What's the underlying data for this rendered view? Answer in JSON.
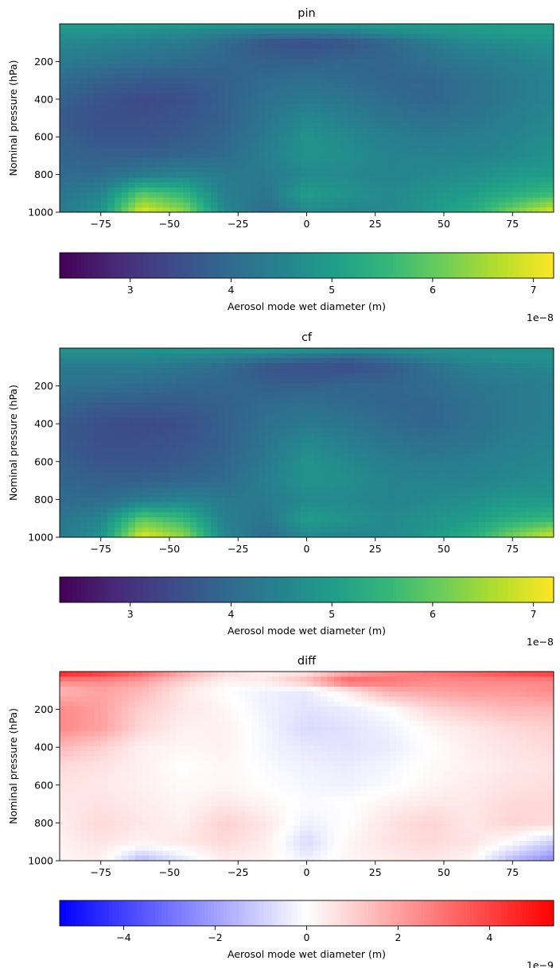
{
  "chart_data": [
    {
      "type": "heatmap",
      "title": "pin",
      "xlabel": "",
      "ylabel": "Nominal pressure (hPa)",
      "xlim": [
        -90,
        90
      ],
      "ylim": [
        1000,
        0
      ],
      "xticks": [
        -75,
        -50,
        -25,
        0,
        25,
        50,
        75
      ],
      "yticks": [
        200,
        400,
        600,
        800,
        1000
      ],
      "colormap": "viridis",
      "colorbar": {
        "label": "Aerosol mode wet diameter (m)",
        "range": [
          2.3e-08,
          7.2e-08
        ],
        "ticks": [
          3,
          4,
          5,
          6,
          7
        ],
        "offset_text": "1e−8",
        "orientation": "horizontal"
      },
      "field": {
        "lat": [
          -90,
          -75,
          -60,
          -45,
          -30,
          -15,
          0,
          15,
          30,
          45,
          60,
          75,
          90
        ],
        "pressure": [
          0,
          50,
          100,
          200,
          300,
          400,
          500,
          600,
          700,
          800,
          900,
          1000
        ],
        "values_1e-8": [
          [
            5.0,
            5.0,
            5.0,
            5.0,
            5.0,
            5.0,
            5.0,
            5.0,
            5.0,
            5.0,
            5.0,
            5.0,
            5.0
          ],
          [
            4.8,
            4.8,
            4.7,
            4.6,
            4.4,
            4.2,
            4.2,
            4.3,
            4.6,
            4.8,
            4.9,
            5.0,
            5.0
          ],
          [
            4.6,
            4.5,
            4.4,
            4.3,
            4.0,
            3.6,
            3.5,
            3.6,
            3.9,
            4.3,
            4.6,
            4.7,
            4.8
          ],
          [
            4.3,
            4.2,
            4.1,
            4.0,
            3.9,
            3.8,
            3.8,
            3.9,
            3.9,
            4.1,
            4.3,
            4.4,
            4.6
          ],
          [
            4.0,
            3.8,
            3.7,
            3.7,
            3.8,
            4.0,
            4.1,
            4.0,
            3.9,
            3.9,
            4.1,
            4.3,
            4.5
          ],
          [
            3.8,
            3.6,
            3.4,
            3.5,
            3.8,
            4.1,
            4.3,
            4.2,
            4.0,
            3.9,
            4.1,
            4.3,
            4.5
          ],
          [
            3.7,
            3.5,
            3.5,
            3.6,
            3.8,
            4.2,
            4.6,
            4.4,
            4.2,
            4.1,
            4.2,
            4.4,
            4.6
          ],
          [
            3.8,
            3.6,
            3.6,
            3.7,
            3.9,
            4.3,
            4.8,
            4.6,
            4.4,
            4.3,
            4.4,
            4.5,
            4.7
          ],
          [
            3.9,
            3.8,
            3.8,
            3.9,
            4.0,
            4.4,
            4.8,
            4.7,
            4.5,
            4.5,
            4.5,
            4.6,
            4.8
          ],
          [
            4.0,
            4.0,
            4.3,
            4.5,
            4.3,
            4.3,
            4.6,
            4.6,
            4.5,
            4.6,
            4.7,
            4.9,
            5.0
          ],
          [
            4.2,
            4.5,
            5.9,
            5.5,
            4.4,
            4.2,
            5.0,
            4.8,
            4.6,
            4.8,
            5.0,
            5.3,
            5.6
          ],
          [
            4.3,
            4.8,
            7.0,
            6.4,
            4.6,
            4.0,
            4.6,
            4.5,
            4.6,
            4.9,
            5.3,
            6.2,
            7.0
          ]
        ]
      }
    },
    {
      "type": "heatmap",
      "title": "cf",
      "xlabel": "",
      "ylabel": "Nominal pressure (hPa)",
      "xlim": [
        -90,
        90
      ],
      "ylim": [
        1000,
        0
      ],
      "xticks": [
        -75,
        -50,
        -25,
        0,
        25,
        50,
        75
      ],
      "yticks": [
        200,
        400,
        600,
        800,
        1000
      ],
      "colormap": "viridis",
      "colorbar": {
        "label": "Aerosol mode wet diameter (m)",
        "range": [
          2.3e-08,
          7.2e-08
        ],
        "ticks": [
          3,
          4,
          5,
          6,
          7
        ],
        "offset_text": "1e−8",
        "orientation": "horizontal"
      },
      "field": {
        "lat": [
          -90,
          -75,
          -60,
          -45,
          -30,
          -15,
          0,
          15,
          30,
          45,
          60,
          75,
          90
        ],
        "pressure": [
          0,
          50,
          100,
          200,
          300,
          400,
          500,
          600,
          700,
          800,
          900,
          1000
        ],
        "values_1e-8": [
          [
            4.8,
            4.8,
            4.8,
            4.9,
            4.9,
            5.0,
            5.0,
            4.9,
            4.8,
            4.8,
            4.7,
            4.7,
            4.7
          ],
          [
            4.6,
            4.6,
            4.6,
            4.5,
            4.4,
            4.2,
            4.0,
            3.8,
            4.1,
            4.5,
            4.7,
            4.8,
            4.8
          ],
          [
            4.3,
            4.3,
            4.3,
            4.2,
            4.0,
            3.6,
            3.5,
            3.5,
            3.7,
            4.1,
            4.4,
            4.5,
            4.6
          ],
          [
            4.1,
            4.1,
            4.0,
            3.9,
            3.9,
            3.8,
            3.8,
            3.9,
            3.9,
            4.0,
            4.2,
            4.3,
            4.4
          ],
          [
            3.9,
            3.7,
            3.7,
            3.7,
            3.8,
            4.0,
            4.1,
            4.0,
            3.9,
            3.9,
            4.1,
            4.3,
            4.4
          ],
          [
            3.7,
            3.5,
            3.4,
            3.5,
            3.8,
            4.1,
            4.3,
            4.2,
            4.0,
            3.9,
            4.1,
            4.3,
            4.4
          ],
          [
            3.7,
            3.5,
            3.5,
            3.6,
            3.8,
            4.2,
            4.6,
            4.4,
            4.2,
            4.1,
            4.2,
            4.4,
            4.5
          ],
          [
            3.8,
            3.6,
            3.6,
            3.7,
            3.9,
            4.3,
            4.8,
            4.6,
            4.4,
            4.3,
            4.4,
            4.5,
            4.6
          ],
          [
            3.9,
            3.8,
            3.8,
            3.9,
            4.0,
            4.4,
            4.8,
            4.7,
            4.5,
            4.5,
            4.5,
            4.6,
            4.7
          ],
          [
            4.0,
            4.0,
            4.3,
            4.5,
            4.3,
            4.3,
            4.6,
            4.6,
            4.5,
            4.6,
            4.7,
            4.9,
            4.9
          ],
          [
            4.2,
            4.5,
            5.9,
            5.5,
            4.4,
            4.2,
            5.0,
            4.8,
            4.6,
            4.8,
            5.0,
            5.3,
            5.5
          ],
          [
            4.3,
            4.8,
            7.0,
            6.4,
            4.6,
            4.0,
            4.6,
            4.5,
            4.6,
            4.9,
            5.3,
            6.2,
            6.9
          ]
        ]
      }
    },
    {
      "type": "heatmap",
      "title": "diff",
      "xlabel": "",
      "ylabel": "Nominal pressure (hPa)",
      "xlim": [
        -90,
        90
      ],
      "ylim": [
        1000,
        0
      ],
      "xticks": [
        -75,
        -50,
        -25,
        0,
        25,
        50,
        75
      ],
      "yticks": [
        200,
        400,
        600,
        800,
        1000
      ],
      "colormap": "bwr",
      "colorbar": {
        "label": "Aerosol mode wet diameter (m)",
        "range": [
          -5.4e-09,
          5.4e-09
        ],
        "ticks": [
          -4,
          -2,
          0,
          2,
          4
        ],
        "offset_text": "1e−9",
        "orientation": "horizontal"
      },
      "field": {
        "lat": [
          -90,
          -75,
          -60,
          -45,
          -30,
          -15,
          0,
          15,
          30,
          45,
          60,
          75,
          90
        ],
        "pressure": [
          0,
          50,
          100,
          200,
          300,
          400,
          500,
          600,
          700,
          800,
          900,
          1000
        ],
        "values_1e-9": [
          [
            5.0,
            4.5,
            3.5,
            2.0,
            0.8,
            0.3,
            0.5,
            1.5,
            2.5,
            3.0,
            3.5,
            4.0,
            4.5
          ],
          [
            2.5,
            2.5,
            2.0,
            1.0,
            0.3,
            0.5,
            1.5,
            3.5,
            3.0,
            2.5,
            2.5,
            2.5,
            2.5
          ],
          [
            1.5,
            2.0,
            1.5,
            0.5,
            0.0,
            -0.3,
            -0.5,
            0.5,
            1.8,
            2.0,
            2.2,
            2.2,
            2.5
          ],
          [
            2.5,
            2.0,
            1.0,
            0.5,
            0.2,
            -0.3,
            -0.6,
            -0.4,
            0.0,
            0.8,
            1.2,
            1.5,
            1.5
          ],
          [
            2.5,
            2.0,
            0.8,
            0.3,
            0.3,
            -0.2,
            -0.8,
            -0.6,
            -0.3,
            0.2,
            0.5,
            0.8,
            1.0
          ],
          [
            1.5,
            1.0,
            0.3,
            0.2,
            0.3,
            -0.2,
            -0.5,
            -0.6,
            -0.4,
            0.0,
            0.4,
            0.6,
            0.8
          ],
          [
            0.8,
            0.6,
            0.3,
            0.0,
            0.2,
            -0.1,
            -0.3,
            -0.4,
            -0.2,
            0.1,
            0.3,
            0.5,
            0.6
          ],
          [
            0.6,
            0.5,
            0.3,
            0.1,
            0.2,
            0.0,
            -0.2,
            -0.3,
            -0.1,
            0.2,
            0.4,
            0.6,
            0.7
          ],
          [
            0.5,
            0.6,
            0.4,
            0.2,
            0.5,
            0.2,
            -0.1,
            0.0,
            0.3,
            0.5,
            0.5,
            0.8,
            0.8
          ],
          [
            0.4,
            0.8,
            0.5,
            0.3,
            1.0,
            0.5,
            -0.3,
            0.0,
            0.6,
            0.9,
            0.5,
            0.9,
            0.8
          ],
          [
            0.3,
            0.6,
            0.3,
            0.5,
            0.8,
            0.4,
            -0.8,
            0.2,
            0.6,
            0.8,
            0.6,
            0.0,
            -1.0
          ],
          [
            0.2,
            0.3,
            -1.5,
            -0.5,
            0.4,
            0.2,
            -0.3,
            0.2,
            0.4,
            0.5,
            0.2,
            -1.5,
            -2.5
          ]
        ]
      }
    }
  ]
}
